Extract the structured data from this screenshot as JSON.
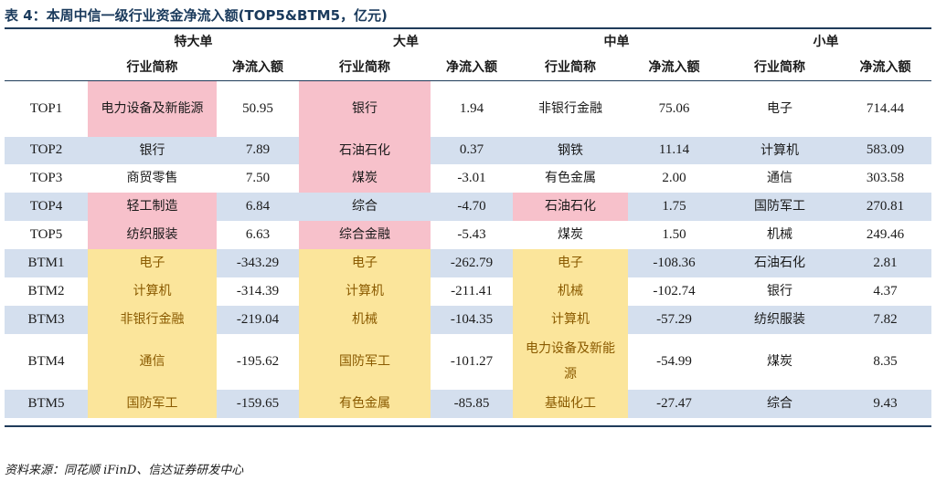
{
  "caption": "表 4：本周中信一级行业资金净流入额(TOP5&BTM5，亿元)",
  "groups": [
    "特大单",
    "大单",
    "中单",
    "小单"
  ],
  "col_headers": {
    "industry": "行业简称",
    "netflow": "净流入额"
  },
  "rows": [
    {
      "label": "TOP1",
      "cells": [
        {
          "industry": "电力设备及新能源",
          "value": "50.95",
          "highlight": "pink"
        },
        {
          "industry": "银行",
          "value": "1.94",
          "highlight": "pink"
        },
        {
          "industry": "非银行金融",
          "value": "75.06",
          "highlight": ""
        },
        {
          "industry": "电子",
          "value": "714.44",
          "highlight": ""
        }
      ]
    },
    {
      "label": "TOP2",
      "cells": [
        {
          "industry": "银行",
          "value": "7.89",
          "highlight": ""
        },
        {
          "industry": "石油石化",
          "value": "0.37",
          "highlight": "pink"
        },
        {
          "industry": "钢铁",
          "value": "11.14",
          "highlight": ""
        },
        {
          "industry": "计算机",
          "value": "583.09",
          "highlight": ""
        }
      ]
    },
    {
      "label": "TOP3",
      "cells": [
        {
          "industry": "商贸零售",
          "value": "7.50",
          "highlight": ""
        },
        {
          "industry": "煤炭",
          "value": "-3.01",
          "highlight": "pink"
        },
        {
          "industry": "有色金属",
          "value": "2.00",
          "highlight": ""
        },
        {
          "industry": "通信",
          "value": "303.58",
          "highlight": ""
        }
      ]
    },
    {
      "label": "TOP4",
      "cells": [
        {
          "industry": "轻工制造",
          "value": "6.84",
          "highlight": "pink"
        },
        {
          "industry": "综合",
          "value": "-4.70",
          "highlight": ""
        },
        {
          "industry": "石油石化",
          "value": "1.75",
          "highlight": "pink"
        },
        {
          "industry": "国防军工",
          "value": "270.81",
          "highlight": ""
        }
      ]
    },
    {
      "label": "TOP5",
      "cells": [
        {
          "industry": "纺织服装",
          "value": "6.63",
          "highlight": "pink"
        },
        {
          "industry": "综合金融",
          "value": "-5.43",
          "highlight": "pink"
        },
        {
          "industry": "煤炭",
          "value": "1.50",
          "highlight": ""
        },
        {
          "industry": "机械",
          "value": "249.46",
          "highlight": ""
        }
      ]
    },
    {
      "label": "BTM1",
      "cells": [
        {
          "industry": "电子",
          "value": "-343.29",
          "highlight": "yellow"
        },
        {
          "industry": "电子",
          "value": "-262.79",
          "highlight": "yellow"
        },
        {
          "industry": "电子",
          "value": "-108.36",
          "highlight": "yellow"
        },
        {
          "industry": "石油石化",
          "value": "2.81",
          "highlight": ""
        }
      ]
    },
    {
      "label": "BTM2",
      "cells": [
        {
          "industry": "计算机",
          "value": "-314.39",
          "highlight": "yellow"
        },
        {
          "industry": "计算机",
          "value": "-211.41",
          "highlight": "yellow"
        },
        {
          "industry": "机械",
          "value": "-102.74",
          "highlight": "yellow"
        },
        {
          "industry": "银行",
          "value": "4.37",
          "highlight": ""
        }
      ]
    },
    {
      "label": "BTM3",
      "cells": [
        {
          "industry": "非银行金融",
          "value": "-219.04",
          "highlight": "yellow"
        },
        {
          "industry": "机械",
          "value": "-104.35",
          "highlight": "yellow"
        },
        {
          "industry": "计算机",
          "value": "-57.29",
          "highlight": "yellow"
        },
        {
          "industry": "纺织服装",
          "value": "7.82",
          "highlight": ""
        }
      ]
    },
    {
      "label": "BTM4",
      "cells": [
        {
          "industry": "通信",
          "value": "-195.62",
          "highlight": "yellow"
        },
        {
          "industry": "国防军工",
          "value": "-101.27",
          "highlight": "yellow"
        },
        {
          "industry": "电力设备及新能源",
          "value": "-54.99",
          "highlight": "yellow"
        },
        {
          "industry": "煤炭",
          "value": "8.35",
          "highlight": ""
        }
      ]
    },
    {
      "label": "BTM5",
      "cells": [
        {
          "industry": "国防军工",
          "value": "-159.65",
          "highlight": "yellow"
        },
        {
          "industry": "有色金属",
          "value": "-85.85",
          "highlight": "yellow"
        },
        {
          "industry": "基础化工",
          "value": "-27.47",
          "highlight": "yellow"
        },
        {
          "industry": "综合",
          "value": "9.43",
          "highlight": ""
        }
      ]
    }
  ],
  "source": "资料来源：同花顺 iFinD、信达证券研发中心",
  "colors": {
    "stripe": "#d4dfee",
    "pink": "#f7c1cb",
    "yellow": "#fbe59b",
    "rule": "#1f3b5a"
  }
}
